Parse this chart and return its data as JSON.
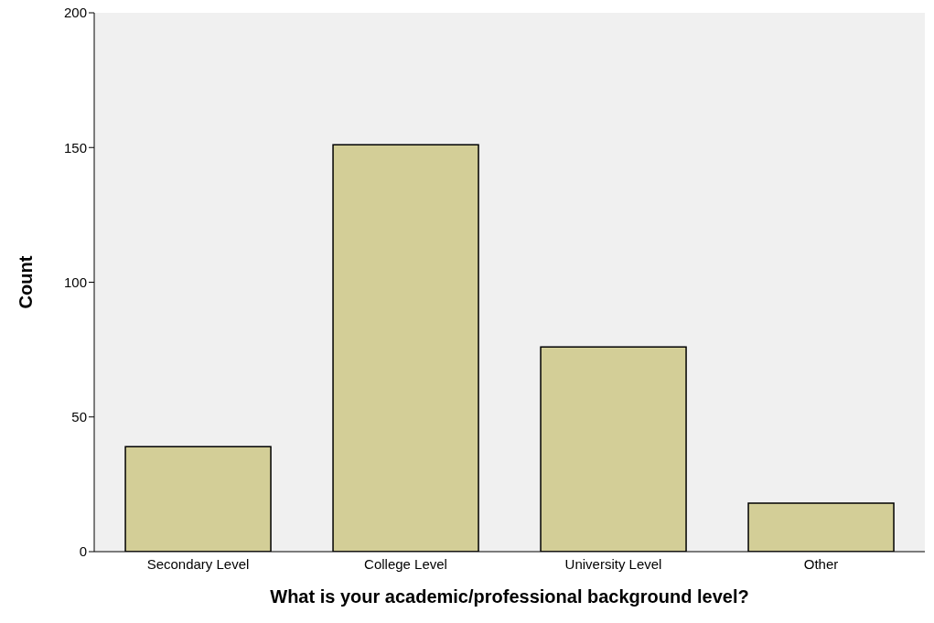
{
  "chart_data": {
    "type": "bar",
    "xlabel": "What is your academic/professional background level?",
    "ylabel": "Count",
    "categories": [
      "Secondary Level",
      "College Level",
      "University Level",
      "Other"
    ],
    "values": [
      39,
      151,
      76,
      18
    ],
    "color": "#d3ce97",
    "ylim": [
      0,
      200
    ],
    "yticks": [
      0,
      50,
      100,
      150,
      200
    ],
    "grid": false
  }
}
